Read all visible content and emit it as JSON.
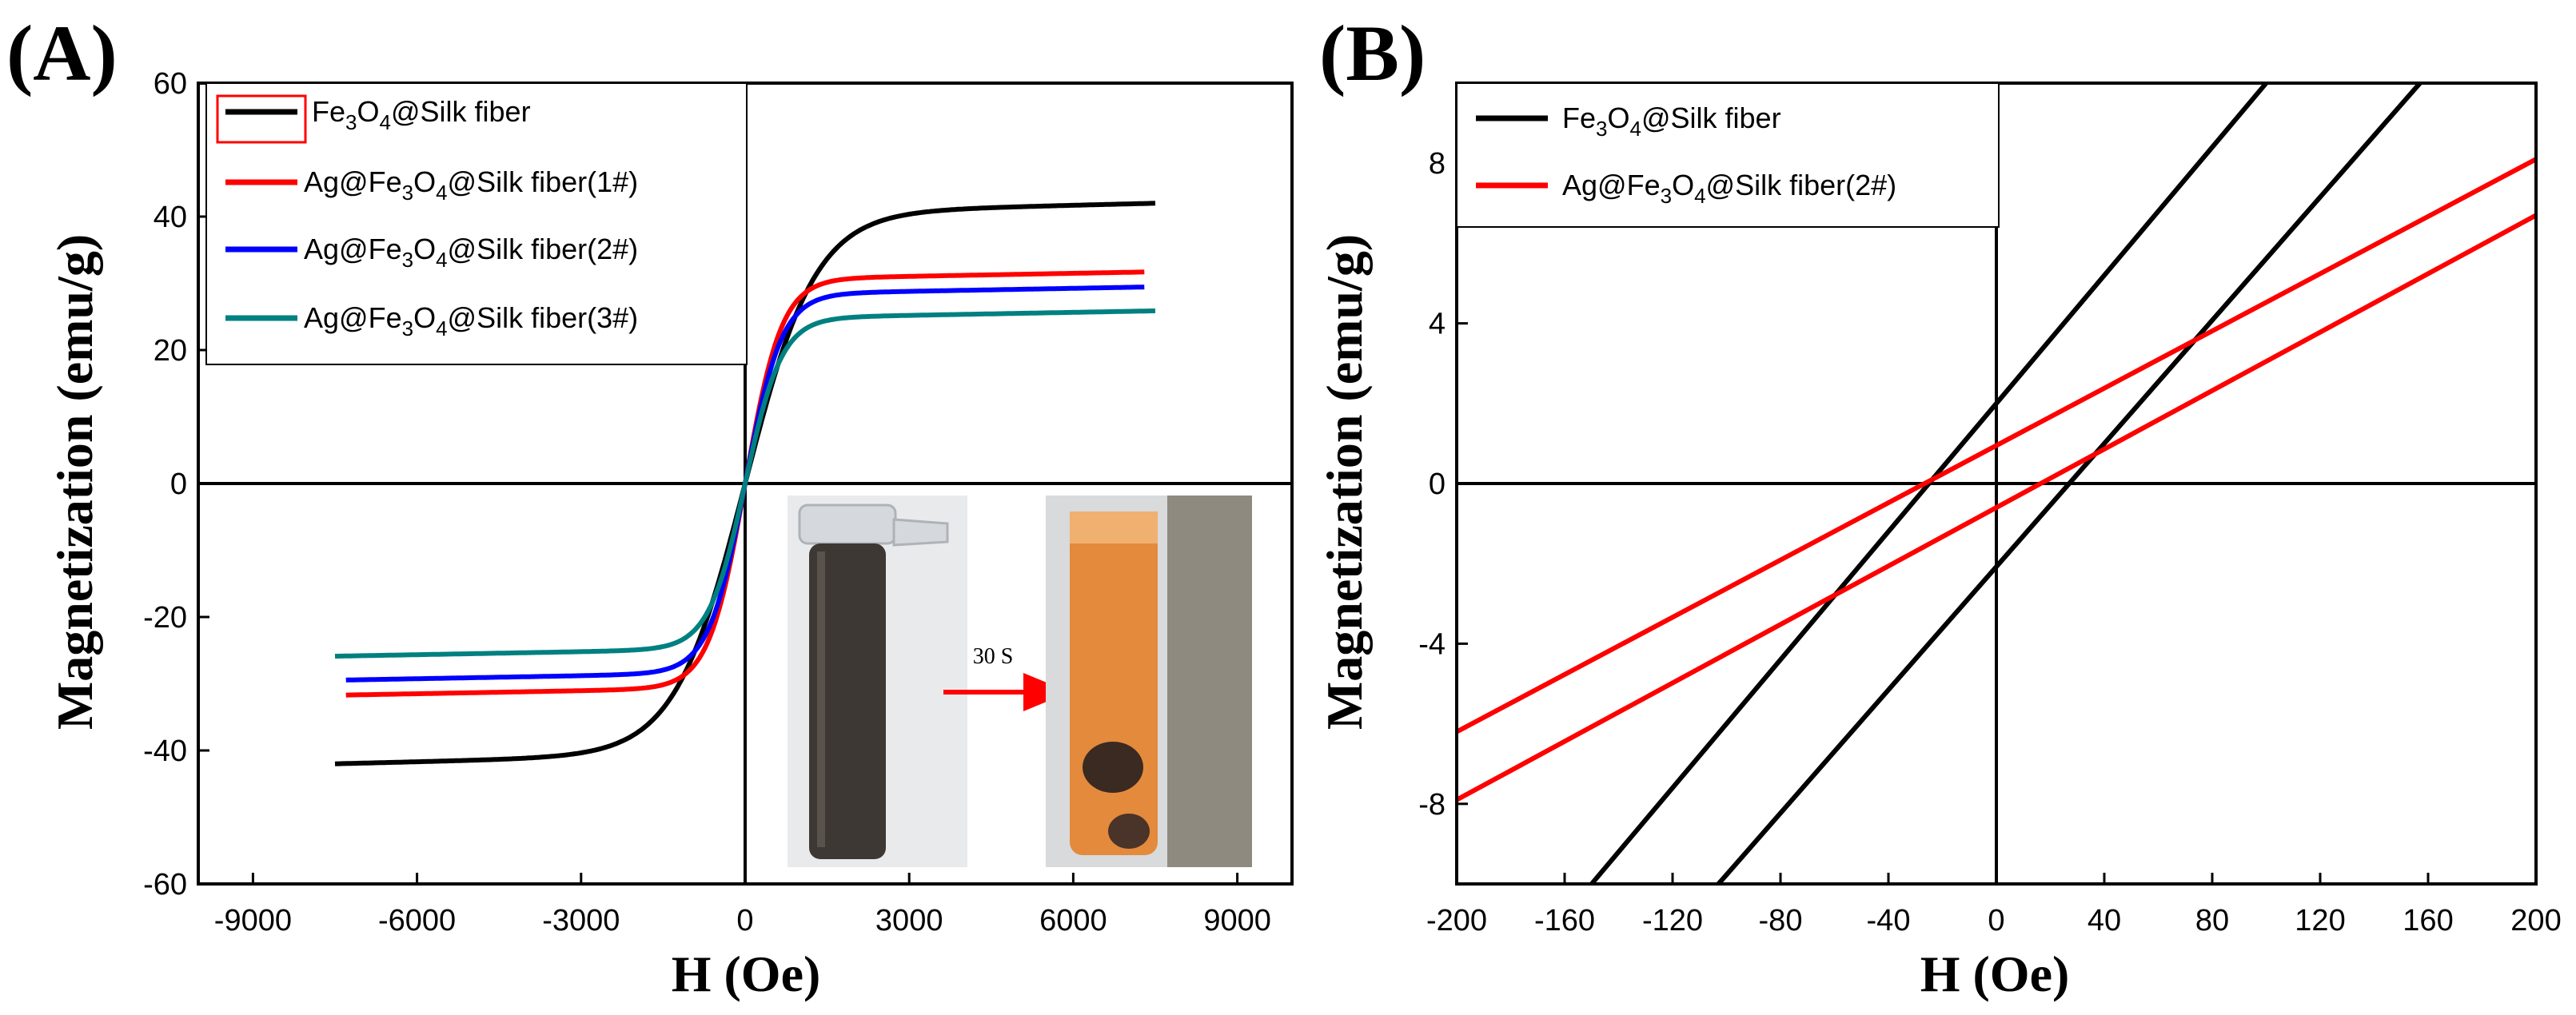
{
  "panels": [
    {
      "label": "(A)",
      "chart_data": {
        "type": "line",
        "xlabel": "H (Oe)",
        "ylabel": "Magnetization (emu/g)",
        "xlim": [
          -10000,
          10000
        ],
        "ylim": [
          -60,
          60
        ],
        "xticks": [
          -9000,
          -6000,
          -3000,
          0,
          3000,
          6000,
          9000
        ],
        "yticks": [
          -60,
          -40,
          -20,
          0,
          20,
          40,
          60
        ],
        "grid": false,
        "zero_lines": true,
        "legend_position": "top-left",
        "series": [
          {
            "name": "Fe3O4@Silk fiber",
            "color": "#000000",
            "ms": 45.0,
            "k": 0.00078,
            "c": 0.2,
            "xmax": 7500
          },
          {
            "name": "Ag@Fe3O4@Silk fiber(1#)",
            "color": "#ff0000",
            "ms": 34.0,
            "k": 0.0015,
            "c": 0.15,
            "xmax": 7300
          },
          {
            "name": "Ag@Fe3O4@Silk fiber(2#)",
            "color": "#0000ff",
            "ms": 31.5,
            "k": 0.0015,
            "c": 0.15,
            "xmax": 7300
          },
          {
            "name": "Ag@Fe3O4@Silk fiber(3#)",
            "color": "#008080",
            "ms": 27.5,
            "k": 0.0015,
            "c": 0.15,
            "xmax": 7500
          }
        ],
        "inset": {
          "annotation": "30 S"
        }
      }
    },
    {
      "label": "(B)",
      "chart_data": {
        "type": "line",
        "xlabel": "H (Oe)",
        "ylabel": "Magnetization (emu/g)",
        "xlim": [
          -200,
          200
        ],
        "ylim": [
          -10,
          10
        ],
        "xticks": [
          -200,
          -160,
          -120,
          -80,
          -40,
          0,
          40,
          80,
          120,
          160,
          200
        ],
        "yticks": [
          -8,
          -4,
          0,
          4,
          8
        ],
        "grid": false,
        "zero_lines": true,
        "legend_position": "top-left",
        "series": [
          {
            "name": "Fe3O4@Silk fiber",
            "color": "#000000",
            "branches": [
              {
                "x": [
                  -150,
                  100
                ],
                "y": [
                  -10,
                  10
                ]
              },
              {
                "x": [
                  -103,
                  157
                ],
                "y": [
                  -10,
                  10
                ]
              }
            ]
          },
          {
            "name": "Ag@Fe3O4@Silk fiber(2#)",
            "color": "#ff0000",
            "branches": [
              {
                "x": [
                  -200,
                  200
                ],
                "y": [
                  -6.2,
                  8.1
                ]
              },
              {
                "x": [
                  -200,
                  200
                ],
                "y": [
                  -7.9,
                  6.7
                ]
              }
            ]
          }
        ]
      }
    }
  ]
}
